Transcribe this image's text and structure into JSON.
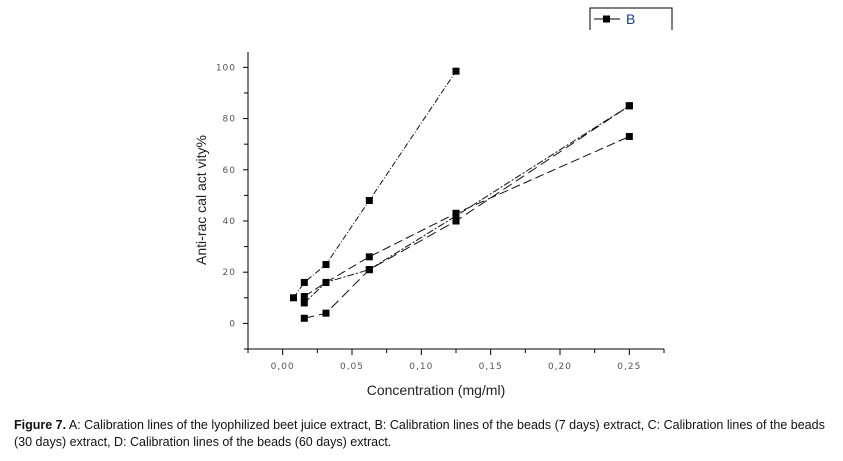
{
  "chart_data": {
    "type": "line",
    "title": "",
    "xlabel": "Concentration (mg/ml)",
    "ylabel": "Anti-radical activity%",
    "ylabel_rendered": "Anti-rac cal act vity%",
    "xlim": [
      -0.025,
      0.275
    ],
    "ylim": [
      -10,
      106
    ],
    "xticks": [
      0.0,
      0.05,
      0.1,
      0.15,
      0.2,
      0.25
    ],
    "xtick_labels": [
      "0,00",
      "0,05",
      "0,10",
      "0,15",
      "0,20",
      "0,25"
    ],
    "yticks": [
      0,
      20,
      40,
      60,
      80,
      100
    ],
    "ytick_labels": [
      "0",
      "20",
      "40",
      "60",
      "80",
      "100"
    ],
    "grid": false,
    "legend": {
      "placement": "top-right",
      "entries": [
        "B"
      ]
    },
    "series": [
      {
        "name": "A",
        "x": [
          0.0078,
          0.0156,
          0.03125,
          0.0625,
          0.125
        ],
        "y": [
          10,
          16,
          23,
          48,
          98.5
        ]
      },
      {
        "name": "B",
        "x": [
          0.0156,
          0.03125,
          0.0625,
          0.125,
          0.25
        ],
        "y": [
          10.5,
          16,
          26,
          43,
          73
        ]
      },
      {
        "name": "C",
        "x": [
          0.0156,
          0.03125,
          0.0625,
          0.125,
          0.25
        ],
        "y": [
          8,
          16,
          21,
          42,
          85
        ]
      },
      {
        "name": "D",
        "x": [
          0.0156,
          0.03125,
          0.0625,
          0.125,
          0.25
        ],
        "y": [
          2,
          4,
          21,
          40,
          85
        ]
      }
    ]
  },
  "caption": {
    "label": "Figure 7.",
    "text": " A: Calibration lines of the lyophilized beet juice extract, B: Calibration lines of the beads (7 days) extract, C: Calibration lines of the beads (30 days) extract, D: Calibration lines of the beads (60 days) extract."
  }
}
